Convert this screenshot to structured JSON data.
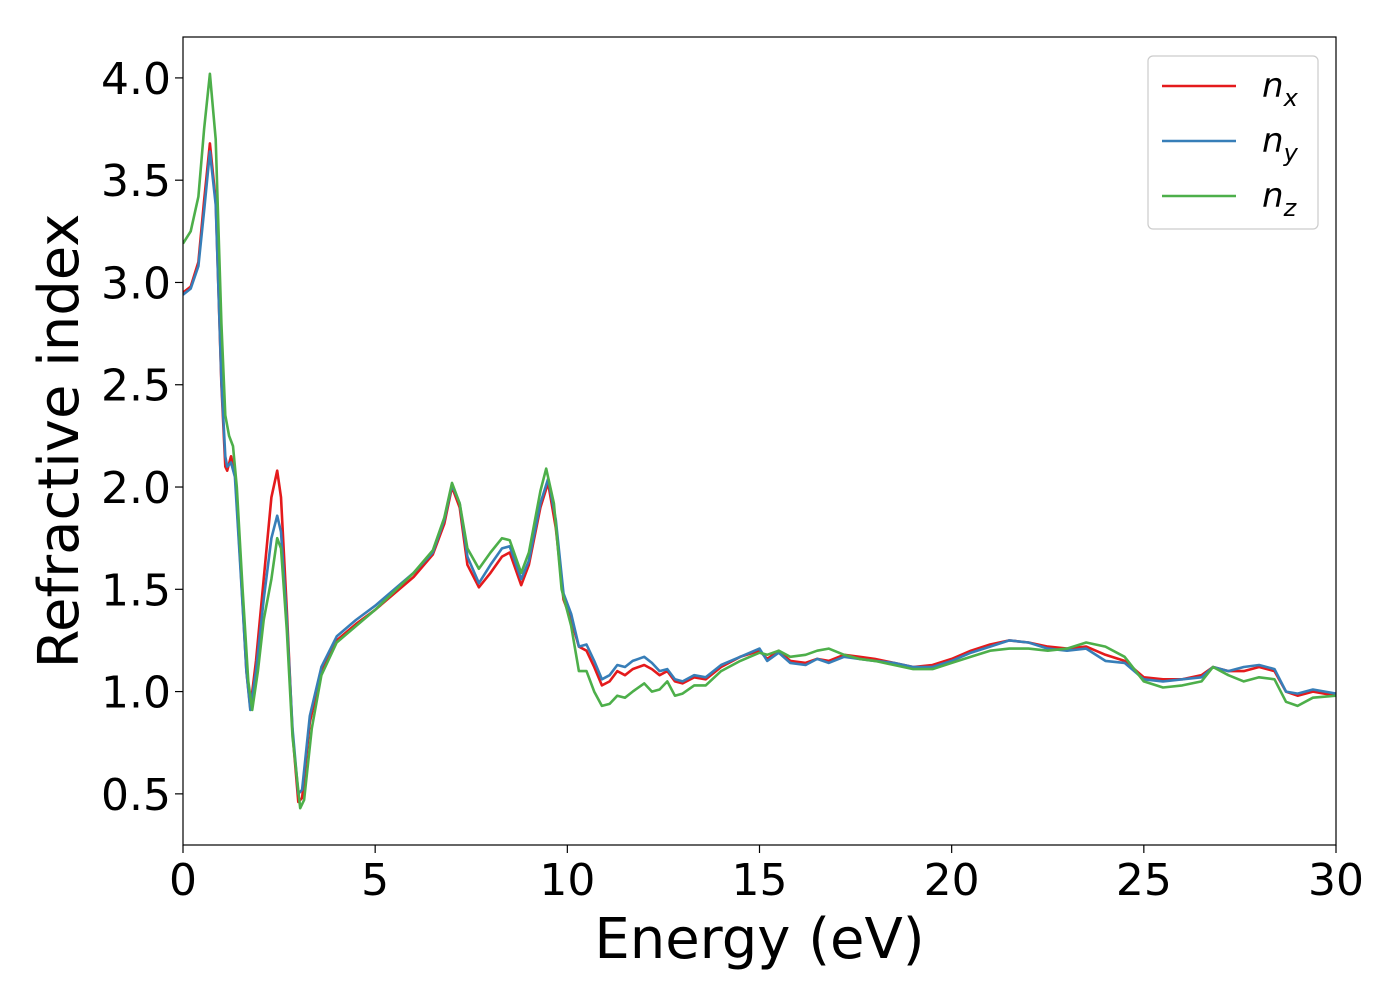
{
  "chart_data": {
    "type": "line",
    "xlabel": "Energy (eV)",
    "ylabel": "Refractive index",
    "xlim": [
      0,
      30
    ],
    "ylim": [
      0.25,
      4.2
    ],
    "xticks": [
      0,
      5,
      10,
      15,
      20,
      25,
      30
    ],
    "xtick_labels": [
      "0",
      "5",
      "10",
      "15",
      "20",
      "25",
      "30"
    ],
    "yticks": [
      0.5,
      1.0,
      1.5,
      2.0,
      2.5,
      3.0,
      3.5,
      4.0
    ],
    "ytick_labels": [
      "0.5",
      "1.0",
      "1.5",
      "2.0",
      "2.5",
      "3.0",
      "3.5",
      "4.0"
    ],
    "grid": false,
    "legend_position": "top-right",
    "series": [
      {
        "name": "n",
        "subscript": "x",
        "color": "#e41a1c",
        "points": [
          [
            0,
            2.95
          ],
          [
            0.2,
            2.98
          ],
          [
            0.4,
            3.1
          ],
          [
            0.55,
            3.4
          ],
          [
            0.7,
            3.68
          ],
          [
            0.85,
            3.4
          ],
          [
            1.0,
            2.5
          ],
          [
            1.1,
            2.1
          ],
          [
            1.15,
            2.08
          ],
          [
            1.25,
            2.15
          ],
          [
            1.35,
            2.08
          ],
          [
            1.5,
            1.6
          ],
          [
            1.65,
            1.1
          ],
          [
            1.75,
            0.92
          ],
          [
            1.9,
            1.15
          ],
          [
            2.1,
            1.55
          ],
          [
            2.3,
            1.95
          ],
          [
            2.45,
            2.08
          ],
          [
            2.55,
            1.95
          ],
          [
            2.7,
            1.4
          ],
          [
            2.85,
            0.8
          ],
          [
            3.0,
            0.46
          ],
          [
            3.1,
            0.48
          ],
          [
            3.3,
            0.85
          ],
          [
            3.6,
            1.1
          ],
          [
            4.0,
            1.25
          ],
          [
            4.5,
            1.33
          ],
          [
            5.0,
            1.4
          ],
          [
            5.5,
            1.48
          ],
          [
            6.0,
            1.56
          ],
          [
            6.5,
            1.67
          ],
          [
            6.8,
            1.82
          ],
          [
            7.0,
            2.0
          ],
          [
            7.2,
            1.9
          ],
          [
            7.4,
            1.62
          ],
          [
            7.7,
            1.51
          ],
          [
            8.0,
            1.58
          ],
          [
            8.3,
            1.66
          ],
          [
            8.5,
            1.68
          ],
          [
            8.8,
            1.52
          ],
          [
            9.0,
            1.62
          ],
          [
            9.3,
            1.9
          ],
          [
            9.5,
            2.02
          ],
          [
            9.7,
            1.8
          ],
          [
            9.9,
            1.45
          ],
          [
            10.1,
            1.35
          ],
          [
            10.3,
            1.22
          ],
          [
            10.5,
            1.2
          ],
          [
            10.7,
            1.12
          ],
          [
            10.9,
            1.03
          ],
          [
            11.1,
            1.05
          ],
          [
            11.3,
            1.1
          ],
          [
            11.5,
            1.08
          ],
          [
            11.7,
            1.11
          ],
          [
            12.0,
            1.13
          ],
          [
            12.2,
            1.11
          ],
          [
            12.4,
            1.08
          ],
          [
            12.6,
            1.1
          ],
          [
            12.8,
            1.05
          ],
          [
            13.0,
            1.04
          ],
          [
            13.3,
            1.07
          ],
          [
            13.6,
            1.06
          ],
          [
            14.0,
            1.12
          ],
          [
            14.5,
            1.17
          ],
          [
            15.0,
            1.2
          ],
          [
            15.2,
            1.16
          ],
          [
            15.5,
            1.2
          ],
          [
            15.8,
            1.15
          ],
          [
            16.2,
            1.14
          ],
          [
            16.5,
            1.16
          ],
          [
            16.8,
            1.15
          ],
          [
            17.2,
            1.18
          ],
          [
            17.6,
            1.17
          ],
          [
            18.0,
            1.16
          ],
          [
            18.5,
            1.14
          ],
          [
            19.0,
            1.12
          ],
          [
            19.5,
            1.13
          ],
          [
            20.0,
            1.16
          ],
          [
            20.5,
            1.2
          ],
          [
            21.0,
            1.23
          ],
          [
            21.5,
            1.25
          ],
          [
            22.0,
            1.24
          ],
          [
            22.5,
            1.22
          ],
          [
            23.0,
            1.21
          ],
          [
            23.5,
            1.22
          ],
          [
            24.0,
            1.18
          ],
          [
            24.5,
            1.15
          ],
          [
            25.0,
            1.07
          ],
          [
            25.5,
            1.06
          ],
          [
            26.0,
            1.06
          ],
          [
            26.5,
            1.08
          ],
          [
            26.8,
            1.12
          ],
          [
            27.2,
            1.1
          ],
          [
            27.6,
            1.1
          ],
          [
            28.0,
            1.12
          ],
          [
            28.4,
            1.1
          ],
          [
            28.7,
            1.0
          ],
          [
            29.0,
            0.98
          ],
          [
            29.4,
            1.0
          ],
          [
            30.0,
            0.98
          ]
        ]
      },
      {
        "name": "n",
        "subscript": "y",
        "color": "#377eb8",
        "points": [
          [
            0,
            2.94
          ],
          [
            0.2,
            2.97
          ],
          [
            0.4,
            3.08
          ],
          [
            0.55,
            3.35
          ],
          [
            0.7,
            3.64
          ],
          [
            0.85,
            3.38
          ],
          [
            1.0,
            2.52
          ],
          [
            1.1,
            2.15
          ],
          [
            1.15,
            2.1
          ],
          [
            1.25,
            2.12
          ],
          [
            1.35,
            2.05
          ],
          [
            1.5,
            1.58
          ],
          [
            1.65,
            1.1
          ],
          [
            1.75,
            0.91
          ],
          [
            1.9,
            1.1
          ],
          [
            2.1,
            1.45
          ],
          [
            2.3,
            1.75
          ],
          [
            2.45,
            1.86
          ],
          [
            2.55,
            1.78
          ],
          [
            2.7,
            1.35
          ],
          [
            2.85,
            0.82
          ],
          [
            3.0,
            0.5
          ],
          [
            3.1,
            0.52
          ],
          [
            3.3,
            0.88
          ],
          [
            3.6,
            1.12
          ],
          [
            4.0,
            1.27
          ],
          [
            4.5,
            1.35
          ],
          [
            5.0,
            1.42
          ],
          [
            5.5,
            1.5
          ],
          [
            6.0,
            1.58
          ],
          [
            6.5,
            1.68
          ],
          [
            6.8,
            1.84
          ],
          [
            7.0,
            2.01
          ],
          [
            7.2,
            1.92
          ],
          [
            7.4,
            1.66
          ],
          [
            7.7,
            1.53
          ],
          [
            8.0,
            1.62
          ],
          [
            8.3,
            1.7
          ],
          [
            8.5,
            1.71
          ],
          [
            8.8,
            1.55
          ],
          [
            9.0,
            1.64
          ],
          [
            9.3,
            1.92
          ],
          [
            9.5,
            2.04
          ],
          [
            9.7,
            1.84
          ],
          [
            9.9,
            1.48
          ],
          [
            10.1,
            1.38
          ],
          [
            10.3,
            1.22
          ],
          [
            10.5,
            1.23
          ],
          [
            10.7,
            1.15
          ],
          [
            10.9,
            1.06
          ],
          [
            11.1,
            1.08
          ],
          [
            11.3,
            1.13
          ],
          [
            11.5,
            1.12
          ],
          [
            11.7,
            1.15
          ],
          [
            12.0,
            1.17
          ],
          [
            12.2,
            1.14
          ],
          [
            12.4,
            1.1
          ],
          [
            12.6,
            1.11
          ],
          [
            12.8,
            1.06
          ],
          [
            13.0,
            1.05
          ],
          [
            13.3,
            1.08
          ],
          [
            13.6,
            1.07
          ],
          [
            14.0,
            1.13
          ],
          [
            14.5,
            1.17
          ],
          [
            15.0,
            1.21
          ],
          [
            15.2,
            1.15
          ],
          [
            15.5,
            1.19
          ],
          [
            15.8,
            1.14
          ],
          [
            16.2,
            1.13
          ],
          [
            16.5,
            1.16
          ],
          [
            16.8,
            1.14
          ],
          [
            17.2,
            1.17
          ],
          [
            17.6,
            1.16
          ],
          [
            18.0,
            1.15
          ],
          [
            18.5,
            1.14
          ],
          [
            19.0,
            1.12
          ],
          [
            19.5,
            1.12
          ],
          [
            20.0,
            1.15
          ],
          [
            20.5,
            1.19
          ],
          [
            21.0,
            1.22
          ],
          [
            21.5,
            1.25
          ],
          [
            22.0,
            1.24
          ],
          [
            22.5,
            1.21
          ],
          [
            23.0,
            1.2
          ],
          [
            23.5,
            1.21
          ],
          [
            24.0,
            1.15
          ],
          [
            24.5,
            1.14
          ],
          [
            25.0,
            1.06
          ],
          [
            25.5,
            1.05
          ],
          [
            26.0,
            1.06
          ],
          [
            26.5,
            1.07
          ],
          [
            26.8,
            1.12
          ],
          [
            27.2,
            1.1
          ],
          [
            27.6,
            1.12
          ],
          [
            28.0,
            1.13
          ],
          [
            28.4,
            1.11
          ],
          [
            28.7,
            1.0
          ],
          [
            29.0,
            0.99
          ],
          [
            29.4,
            1.01
          ],
          [
            30.0,
            0.99
          ]
        ]
      },
      {
        "name": "n",
        "subscript": "z",
        "color": "#4daf4a",
        "points": [
          [
            0,
            3.19
          ],
          [
            0.2,
            3.25
          ],
          [
            0.4,
            3.42
          ],
          [
            0.55,
            3.75
          ],
          [
            0.7,
            4.02
          ],
          [
            0.85,
            3.7
          ],
          [
            1.0,
            2.8
          ],
          [
            1.1,
            2.35
          ],
          [
            1.2,
            2.25
          ],
          [
            1.3,
            2.2
          ],
          [
            1.4,
            2.0
          ],
          [
            1.55,
            1.5
          ],
          [
            1.7,
            1.05
          ],
          [
            1.8,
            0.91
          ],
          [
            1.95,
            1.1
          ],
          [
            2.1,
            1.35
          ],
          [
            2.3,
            1.55
          ],
          [
            2.45,
            1.75
          ],
          [
            2.55,
            1.7
          ],
          [
            2.7,
            1.3
          ],
          [
            2.85,
            0.78
          ],
          [
            3.05,
            0.43
          ],
          [
            3.15,
            0.47
          ],
          [
            3.35,
            0.82
          ],
          [
            3.6,
            1.08
          ],
          [
            4.0,
            1.24
          ],
          [
            4.5,
            1.32
          ],
          [
            5.0,
            1.4
          ],
          [
            5.5,
            1.49
          ],
          [
            6.0,
            1.58
          ],
          [
            6.5,
            1.69
          ],
          [
            6.8,
            1.85
          ],
          [
            7.0,
            2.02
          ],
          [
            7.2,
            1.92
          ],
          [
            7.4,
            1.7
          ],
          [
            7.7,
            1.6
          ],
          [
            8.0,
            1.68
          ],
          [
            8.3,
            1.75
          ],
          [
            8.5,
            1.74
          ],
          [
            8.8,
            1.58
          ],
          [
            9.0,
            1.68
          ],
          [
            9.3,
            1.98
          ],
          [
            9.45,
            2.09
          ],
          [
            9.65,
            1.92
          ],
          [
            9.85,
            1.5
          ],
          [
            10.1,
            1.32
          ],
          [
            10.3,
            1.1
          ],
          [
            10.5,
            1.1
          ],
          [
            10.7,
            1.0
          ],
          [
            10.9,
            0.93
          ],
          [
            11.1,
            0.94
          ],
          [
            11.3,
            0.98
          ],
          [
            11.5,
            0.97
          ],
          [
            11.7,
            1.0
          ],
          [
            12.0,
            1.04
          ],
          [
            12.2,
            1.0
          ],
          [
            12.4,
            1.01
          ],
          [
            12.6,
            1.05
          ],
          [
            12.8,
            0.98
          ],
          [
            13.0,
            0.99
          ],
          [
            13.3,
            1.03
          ],
          [
            13.6,
            1.03
          ],
          [
            14.0,
            1.1
          ],
          [
            14.5,
            1.15
          ],
          [
            15.0,
            1.19
          ],
          [
            15.2,
            1.18
          ],
          [
            15.5,
            1.2
          ],
          [
            15.8,
            1.17
          ],
          [
            16.2,
            1.18
          ],
          [
            16.5,
            1.2
          ],
          [
            16.8,
            1.21
          ],
          [
            17.2,
            1.18
          ],
          [
            17.6,
            1.16
          ],
          [
            18.0,
            1.15
          ],
          [
            18.5,
            1.13
          ],
          [
            19.0,
            1.11
          ],
          [
            19.5,
            1.11
          ],
          [
            20.0,
            1.14
          ],
          [
            20.5,
            1.17
          ],
          [
            21.0,
            1.2
          ],
          [
            21.5,
            1.21
          ],
          [
            22.0,
            1.21
          ],
          [
            22.5,
            1.2
          ],
          [
            23.0,
            1.21
          ],
          [
            23.5,
            1.24
          ],
          [
            24.0,
            1.22
          ],
          [
            24.5,
            1.17
          ],
          [
            25.0,
            1.05
          ],
          [
            25.5,
            1.02
          ],
          [
            26.0,
            1.03
          ],
          [
            26.5,
            1.05
          ],
          [
            26.8,
            1.12
          ],
          [
            27.2,
            1.08
          ],
          [
            27.6,
            1.05
          ],
          [
            28.0,
            1.07
          ],
          [
            28.4,
            1.06
          ],
          [
            28.7,
            0.95
          ],
          [
            29.0,
            0.93
          ],
          [
            29.4,
            0.97
          ],
          [
            30.0,
            0.98
          ]
        ]
      }
    ]
  }
}
